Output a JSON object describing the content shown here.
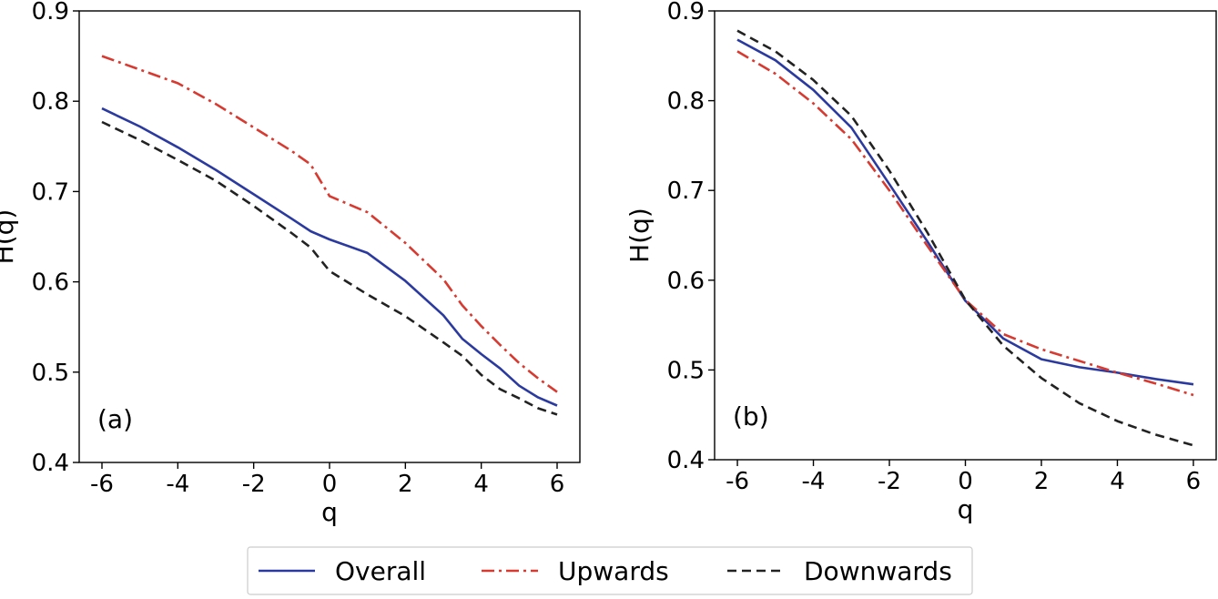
{
  "chart_data": [
    {
      "type": "line",
      "panel_label": "(a)",
      "xlabel": "q",
      "ylabel": "H(q)",
      "xlim": [
        -6.6,
        6.6
      ],
      "ylim": [
        0.4,
        0.9
      ],
      "xticks": [
        -6,
        -4,
        -2,
        0,
        2,
        4,
        6
      ],
      "yticks": [
        0.4,
        0.5,
        0.6,
        0.7,
        0.8,
        0.9
      ],
      "xtick_labels": [
        "-6",
        "-4",
        "-2",
        "0",
        "2",
        "4",
        "6"
      ],
      "ytick_labels": [
        "0.4",
        "0.5",
        "0.6",
        "0.7",
        "0.8",
        "0.9"
      ],
      "grid": false,
      "x": [
        -6,
        -5,
        -4,
        -3,
        -2,
        -1,
        -0.5,
        0,
        1,
        2,
        3,
        3.5,
        4,
        4.5,
        5,
        5.5,
        6
      ],
      "series": [
        {
          "name": "Overall",
          "color": "#2b3a9e",
          "dash": "solid",
          "values": [
            0.792,
            0.772,
            0.749,
            0.724,
            0.697,
            0.67,
            0.656,
            0.647,
            0.632,
            0.601,
            0.563,
            0.537,
            0.52,
            0.504,
            0.485,
            0.472,
            0.463
          ]
        },
        {
          "name": "Upwards",
          "color": "#d63a30",
          "dash": "dashdot",
          "values": [
            0.85,
            0.835,
            0.82,
            0.797,
            0.771,
            0.745,
            0.73,
            0.695,
            0.677,
            0.643,
            0.603,
            0.574,
            0.551,
            0.53,
            0.51,
            0.493,
            0.478
          ]
        },
        {
          "name": "Downwards",
          "color": "#222222",
          "dash": "dashed",
          "values": [
            0.777,
            0.757,
            0.735,
            0.712,
            0.684,
            0.654,
            0.638,
            0.612,
            0.586,
            0.562,
            0.533,
            0.518,
            0.497,
            0.481,
            0.471,
            0.46,
            0.453
          ]
        }
      ]
    },
    {
      "type": "line",
      "panel_label": "(b)",
      "xlabel": "q",
      "ylabel": "H(q)",
      "xlim": [
        -6.6,
        6.6
      ],
      "ylim": [
        0.4,
        0.9
      ],
      "xticks": [
        -6,
        -4,
        -2,
        0,
        2,
        4,
        6
      ],
      "yticks": [
        0.4,
        0.5,
        0.6,
        0.7,
        0.8,
        0.9
      ],
      "xtick_labels": [
        "-6",
        "-4",
        "-2",
        "0",
        "2",
        "4",
        "6"
      ],
      "ytick_labels": [
        "0.4",
        "0.5",
        "0.6",
        "0.7",
        "0.8",
        "0.9"
      ],
      "grid": false,
      "x": [
        -6,
        -5,
        -4,
        -3,
        -2,
        -1,
        0,
        1,
        2,
        3,
        4,
        5,
        6
      ],
      "series": [
        {
          "name": "Overall",
          "color": "#2b3a9e",
          "dash": "solid",
          "values": [
            0.868,
            0.845,
            0.812,
            0.77,
            0.707,
            0.643,
            0.577,
            0.535,
            0.512,
            0.503,
            0.497,
            0.49,
            0.484
          ]
        },
        {
          "name": "Upwards",
          "color": "#d63a30",
          "dash": "dashdot",
          "values": [
            0.855,
            0.83,
            0.797,
            0.757,
            0.7,
            0.638,
            0.578,
            0.54,
            0.523,
            0.51,
            0.497,
            0.485,
            0.472
          ]
        },
        {
          "name": "Downwards",
          "color": "#222222",
          "dash": "dashed",
          "values": [
            0.878,
            0.855,
            0.823,
            0.783,
            0.722,
            0.653,
            0.578,
            0.527,
            0.491,
            0.463,
            0.443,
            0.428,
            0.416
          ]
        }
      ]
    }
  ],
  "legend": {
    "placement": "bottom-center",
    "entries": [
      {
        "label": "Overall",
        "color": "#2b3a9e",
        "dash": "solid"
      },
      {
        "label": "Upwards",
        "color": "#d63a30",
        "dash": "dashdot"
      },
      {
        "label": "Downwards",
        "color": "#222222",
        "dash": "dashed"
      }
    ]
  }
}
